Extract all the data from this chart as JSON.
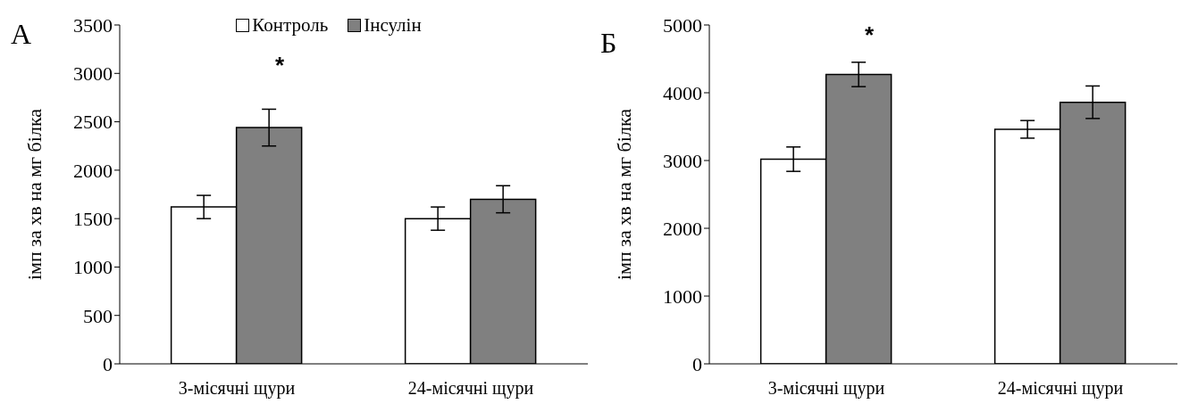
{
  "chart_data": [
    {
      "type": "bar",
      "title": "А",
      "ylabel": "імп за хв на мг білка",
      "categories": [
        "3-місячні щури",
        "24-місячні щури"
      ],
      "series": [
        {
          "name": "Контроль",
          "color": "#ffffff",
          "values": [
            1620,
            1500
          ],
          "errors": [
            120,
            120
          ]
        },
        {
          "name": "Інсулін",
          "color": "#808080",
          "values": [
            2440,
            1700
          ],
          "errors": [
            190,
            140
          ]
        }
      ],
      "ylim": [
        0,
        3500
      ],
      "yticks": [
        0,
        500,
        1000,
        1500,
        2000,
        2500,
        3000,
        3500
      ],
      "legend": "top",
      "grid": false,
      "annotations": [
        "*"
      ]
    },
    {
      "type": "bar",
      "title": "Б",
      "ylabel": "імп за хв на мг білка",
      "categories": [
        "3-місячні щури",
        "24-місячні щури"
      ],
      "series": [
        {
          "color": "#ffffff",
          "values": [
            3020,
            3460
          ],
          "errors": [
            180,
            130
          ]
        },
        {
          "color": "#808080",
          "values": [
            4270,
            3860
          ],
          "errors": [
            180,
            240
          ]
        }
      ],
      "ylim": [
        0,
        5000
      ],
      "yticks": [
        0,
        1000,
        2000,
        3000,
        4000,
        5000
      ],
      "grid": false,
      "annotations": [
        "*"
      ]
    }
  ]
}
